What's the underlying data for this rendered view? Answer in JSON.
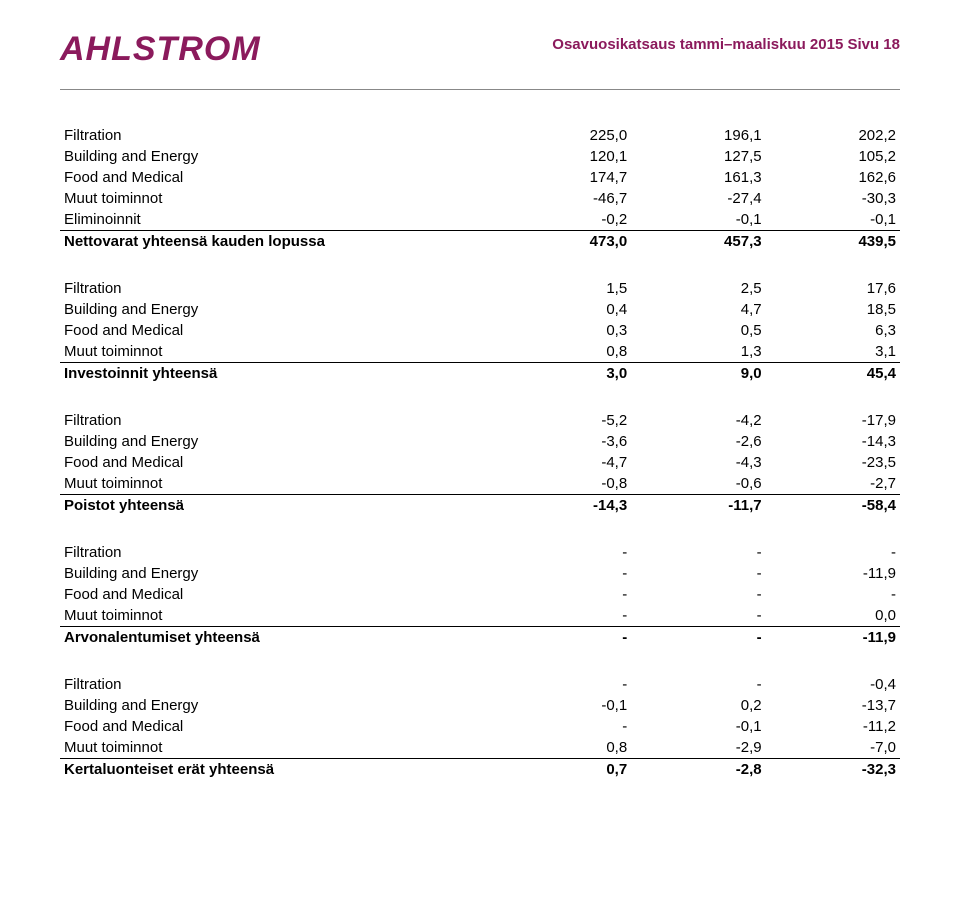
{
  "header": {
    "logo": "AHLSTROM",
    "report_title": "Osavuosikatsaus tammi–maaliskuu 2015 Sivu 18"
  },
  "row_labels": {
    "filtration": "Filtration",
    "building": "Building and Energy",
    "food": "Food and Medical",
    "muut": "Muut toiminnot",
    "elim": "Eliminoinnit"
  },
  "sections": [
    {
      "rows": [
        [
          "filtration",
          "225,0",
          "196,1",
          "202,2"
        ],
        [
          "building",
          "120,1",
          "127,5",
          "105,2"
        ],
        [
          "food",
          "174,7",
          "161,3",
          "162,6"
        ],
        [
          "muut",
          "-46,7",
          "-27,4",
          "-30,3"
        ],
        [
          "elim",
          "-0,2",
          "-0,1",
          "-0,1"
        ]
      ],
      "total": {
        "label": "Nettovarat yhteensä kauden lopussa",
        "values": [
          "473,0",
          "457,3",
          "439,5"
        ]
      }
    },
    {
      "rows": [
        [
          "filtration",
          "1,5",
          "2,5",
          "17,6"
        ],
        [
          "building",
          "0,4",
          "4,7",
          "18,5"
        ],
        [
          "food",
          "0,3",
          "0,5",
          "6,3"
        ],
        [
          "muut",
          "0,8",
          "1,3",
          "3,1"
        ]
      ],
      "total": {
        "label": "Investoinnit yhteensä",
        "values": [
          "3,0",
          "9,0",
          "45,4"
        ]
      }
    },
    {
      "rows": [
        [
          "filtration",
          "-5,2",
          "-4,2",
          "-17,9"
        ],
        [
          "building",
          "-3,6",
          "-2,6",
          "-14,3"
        ],
        [
          "food",
          "-4,7",
          "-4,3",
          "-23,5"
        ],
        [
          "muut",
          "-0,8",
          "-0,6",
          "-2,7"
        ]
      ],
      "total": {
        "label": "Poistot yhteensä",
        "values": [
          "-14,3",
          "-11,7",
          "-58,4"
        ]
      }
    },
    {
      "rows": [
        [
          "filtration",
          "-",
          "-",
          "-"
        ],
        [
          "building",
          "-",
          "-",
          "-11,9"
        ],
        [
          "food",
          "-",
          "-",
          "-"
        ],
        [
          "muut",
          "-",
          "-",
          "0,0"
        ]
      ],
      "total": {
        "label": "Arvonalentumiset yhteensä",
        "values": [
          "-",
          "-",
          "-11,9"
        ]
      }
    },
    {
      "rows": [
        [
          "filtration",
          "-",
          "-",
          "-0,4"
        ],
        [
          "building",
          "-0,1",
          "0,2",
          "-13,7"
        ],
        [
          "food",
          "-",
          "-0,1",
          "-11,2"
        ],
        [
          "muut",
          "0,8",
          "-2,9",
          "-7,0"
        ]
      ],
      "total": {
        "label": "Kertaluonteiset erät yhteensä",
        "values": [
          "0,7",
          "-2,8",
          "-32,3"
        ]
      }
    }
  ]
}
